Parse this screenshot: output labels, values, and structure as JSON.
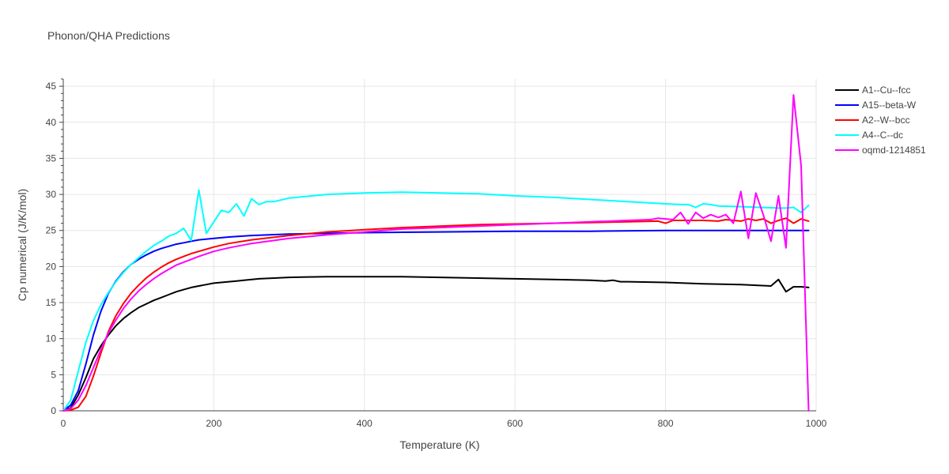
{
  "chart_data": {
    "type": "line",
    "title": "Phonon/QHA Predictions",
    "xlabel": "Temperature (K)",
    "ylabel": "Cp numerical (J/K/mol)",
    "xlim": [
      0,
      1000
    ],
    "ylim": [
      0,
      46
    ],
    "xticks": [
      0,
      200,
      400,
      600,
      800,
      1000
    ],
    "yticks": [
      0,
      5,
      10,
      15,
      20,
      25,
      30,
      35,
      40,
      45
    ],
    "grid": true,
    "legend_position": "top-right",
    "series": [
      {
        "name": "A1--Cu--fcc",
        "color": "#000000",
        "x": [
          0,
          10,
          20,
          30,
          40,
          50,
          60,
          70,
          80,
          90,
          100,
          110,
          120,
          130,
          140,
          150,
          160,
          170,
          180,
          190,
          200,
          210,
          220,
          230,
          240,
          260,
          280,
          300,
          350,
          400,
          450,
          500,
          550,
          600,
          650,
          700,
          720,
          730,
          740,
          750,
          800,
          850,
          900,
          940,
          950,
          960,
          970,
          980,
          990
        ],
        "y": [
          0,
          0.4,
          2.2,
          4.6,
          7.2,
          9.0,
          10.5,
          11.8,
          12.8,
          13.6,
          14.3,
          14.8,
          15.3,
          15.7,
          16.1,
          16.5,
          16.8,
          17.1,
          17.3,
          17.5,
          17.7,
          17.8,
          17.9,
          18.0,
          18.1,
          18.3,
          18.4,
          18.5,
          18.6,
          18.6,
          18.6,
          18.5,
          18.4,
          18.3,
          18.2,
          18.1,
          18.0,
          18.1,
          17.9,
          17.9,
          17.8,
          17.6,
          17.5,
          17.3,
          18.2,
          16.5,
          17.2,
          17.2,
          17.1
        ]
      },
      {
        "name": "A15--beta-W",
        "color": "#0000ff",
        "x": [
          0,
          10,
          20,
          30,
          40,
          50,
          60,
          70,
          80,
          90,
          100,
          110,
          120,
          130,
          140,
          150,
          160,
          170,
          180,
          200,
          220,
          250,
          300,
          350,
          400,
          500,
          600,
          700,
          800,
          900,
          990
        ],
        "y": [
          0,
          0.8,
          2.8,
          6.5,
          10.5,
          13.8,
          16.3,
          18.0,
          19.3,
          20.3,
          21.0,
          21.6,
          22.1,
          22.5,
          22.8,
          23.1,
          23.3,
          23.5,
          23.7,
          23.9,
          24.1,
          24.3,
          24.5,
          24.6,
          24.7,
          24.8,
          24.9,
          24.9,
          25.0,
          25.0,
          25.0
        ]
      },
      {
        "name": "A2--W--bcc",
        "color": "#ff0000",
        "x": [
          0,
          10,
          20,
          30,
          40,
          50,
          60,
          70,
          80,
          90,
          100,
          110,
          120,
          130,
          140,
          150,
          160,
          170,
          180,
          200,
          220,
          250,
          300,
          350,
          400,
          450,
          500,
          550,
          600,
          650,
          700,
          750,
          790,
          800,
          810,
          850,
          870,
          880,
          900,
          910,
          920,
          930,
          940,
          950,
          960,
          970,
          980,
          990
        ],
        "y": [
          0,
          0.1,
          0.5,
          2.0,
          4.8,
          8.0,
          11.0,
          13.2,
          14.9,
          16.3,
          17.4,
          18.4,
          19.2,
          19.9,
          20.5,
          21.0,
          21.4,
          21.8,
          22.1,
          22.7,
          23.2,
          23.7,
          24.3,
          24.8,
          25.1,
          25.4,
          25.6,
          25.8,
          25.9,
          26.0,
          26.1,
          26.2,
          26.3,
          26.0,
          26.4,
          26.4,
          26.3,
          26.5,
          26.3,
          26.6,
          26.4,
          26.6,
          26.0,
          26.4,
          26.7,
          26.0,
          26.6,
          26.3
        ]
      },
      {
        "name": "A4--C--dc",
        "color": "#00ffff",
        "x": [
          0,
          10,
          20,
          30,
          40,
          50,
          60,
          70,
          80,
          90,
          100,
          110,
          120,
          130,
          140,
          150,
          160,
          170,
          180,
          190,
          200,
          210,
          220,
          230,
          240,
          250,
          260,
          270,
          280,
          300,
          350,
          400,
          450,
          500,
          550,
          600,
          650,
          700,
          750,
          800,
          820,
          830,
          840,
          850,
          860,
          870,
          900,
          950,
          960,
          970,
          980,
          990
        ],
        "y": [
          0,
          1.5,
          5.5,
          9.5,
          12.5,
          14.7,
          16.4,
          17.9,
          19.2,
          20.3,
          21.2,
          22.1,
          22.9,
          23.5,
          24.2,
          24.6,
          25.3,
          23.6,
          30.6,
          24.6,
          26.2,
          27.8,
          27.5,
          28.7,
          27.0,
          29.4,
          28.6,
          29.0,
          29.0,
          29.5,
          30.0,
          30.2,
          30.3,
          30.2,
          30.1,
          29.8,
          29.6,
          29.3,
          29.0,
          28.7,
          28.6,
          28.6,
          28.2,
          28.7,
          28.6,
          28.4,
          28.3,
          28.1,
          28.1,
          28.2,
          27.5,
          28.5
        ]
      },
      {
        "name": "oqmd-1214851",
        "color": "#ff00ff",
        "x": [
          0,
          10,
          20,
          30,
          40,
          50,
          60,
          70,
          80,
          90,
          100,
          110,
          120,
          130,
          140,
          150,
          160,
          170,
          180,
          200,
          220,
          250,
          300,
          350,
          400,
          450,
          500,
          550,
          600,
          650,
          700,
          750,
          780,
          790,
          800,
          810,
          820,
          830,
          840,
          850,
          860,
          870,
          880,
          890,
          900,
          910,
          920,
          930,
          940,
          950,
          960,
          970,
          980,
          990
        ],
        "y": [
          0,
          0.3,
          1.5,
          3.5,
          6.0,
          8.5,
          10.8,
          12.6,
          14.2,
          15.5,
          16.6,
          17.5,
          18.3,
          19.0,
          19.6,
          20.2,
          20.6,
          21.0,
          21.4,
          22.1,
          22.6,
          23.2,
          23.9,
          24.4,
          24.8,
          25.2,
          25.4,
          25.6,
          25.8,
          26.0,
          26.2,
          26.4,
          26.5,
          26.7,
          26.6,
          26.5,
          27.5,
          25.9,
          27.5,
          26.7,
          27.2,
          26.8,
          27.2,
          26.0,
          30.4,
          23.9,
          30.2,
          27.1,
          23.5,
          29.8,
          22.6,
          43.8,
          34.0,
          0.0
        ]
      }
    ]
  }
}
